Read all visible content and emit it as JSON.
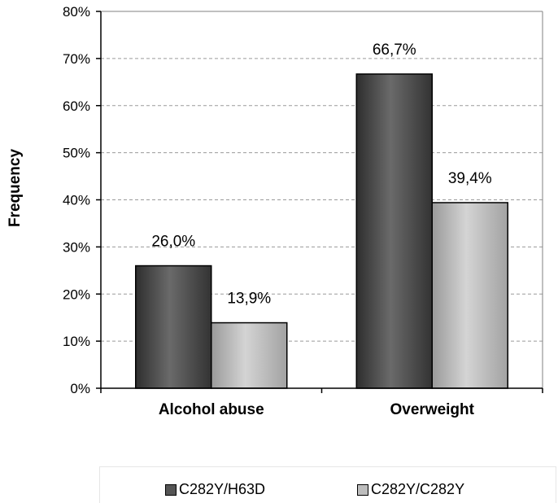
{
  "chart_data": {
    "type": "bar",
    "categories": [
      "Alcohol abuse",
      "Overweight"
    ],
    "series": [
      {
        "name": "C282Y/H63D",
        "values": [
          26.0,
          66.7
        ],
        "labels": [
          "26,0%",
          "66,7%"
        ],
        "color": "#555555"
      },
      {
        "name": "C282Y/C282Y",
        "values": [
          13.9,
          39.4
        ],
        "labels": [
          "13,9%",
          "39,4%"
        ],
        "color": "#bdbdbd"
      }
    ],
    "ylabel": "Frequency",
    "ylim": [
      0,
      80
    ],
    "yticks": [
      "0%",
      "10%",
      "20%",
      "30%",
      "40%",
      "50%",
      "60%",
      "70%",
      "80%"
    ],
    "grid": true,
    "legend": "bottom"
  }
}
